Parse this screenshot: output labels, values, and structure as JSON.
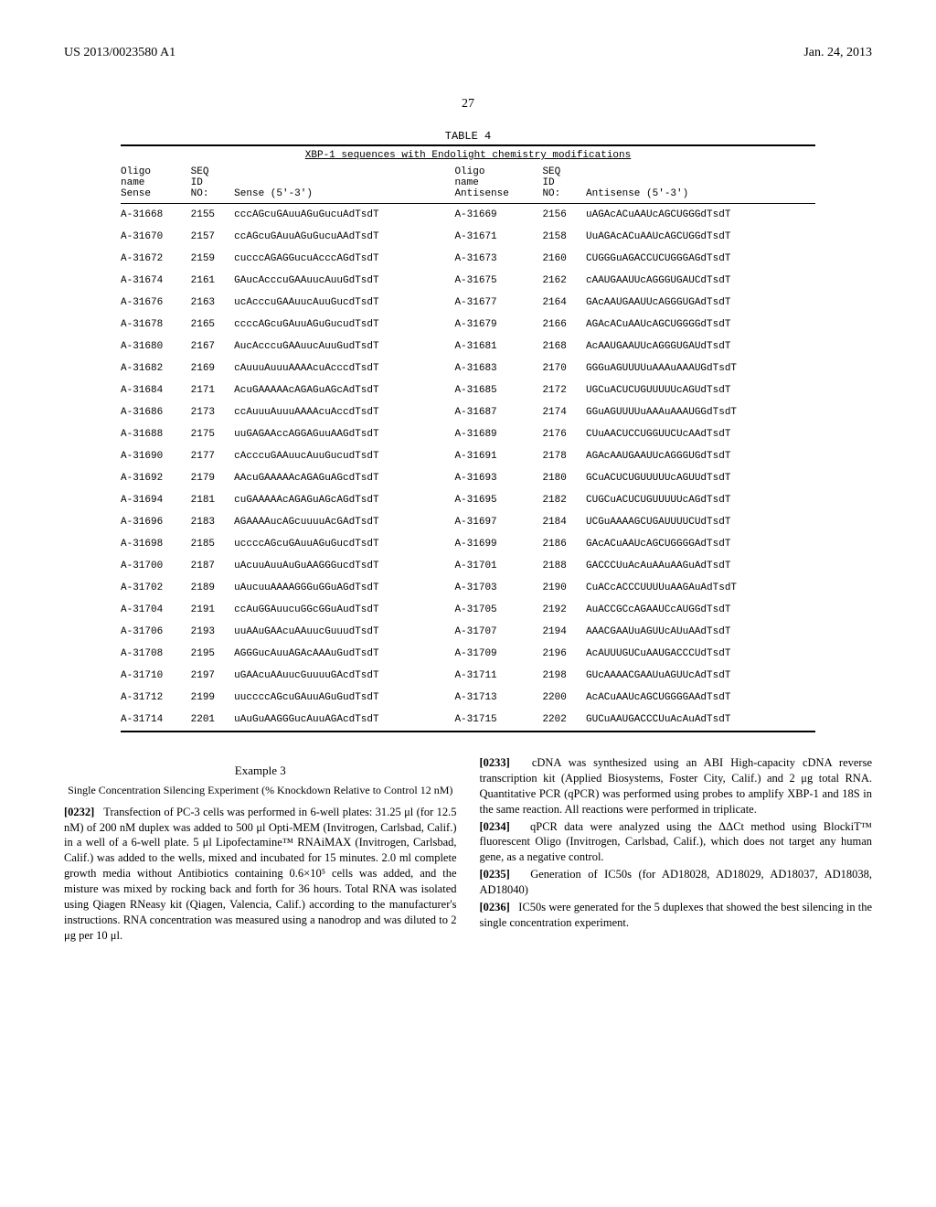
{
  "header": {
    "left": "US 2013/0023580 A1",
    "right": "Jan. 24, 2013"
  },
  "page_number": "27",
  "table": {
    "label": "TABLE 4",
    "caption": "XBP-1 sequences with Endolight chemistry modifications",
    "columns": {
      "c1a": "Oligo",
      "c1b": "name",
      "c1c": "Sense",
      "c2a": "SEQ",
      "c2b": "ID",
      "c2c": "NO:",
      "c3": "Sense (5'-3')",
      "c4a": "Oligo",
      "c4b": "name",
      "c4c": "Antisense",
      "c5a": "SEQ",
      "c5b": "ID",
      "c5c": "NO:",
      "c6": "Antisense (5'-3')"
    },
    "rows": [
      {
        "s": "A-31668",
        "sid": "2155",
        "sseq": "cccAGcuGAuuAGuGucuAdTsdT",
        "a": "A-31669",
        "aid": "2156",
        "aseq": "uAGAcACuAAUcAGCUGGGdTsdT"
      },
      {
        "s": "A-31670",
        "sid": "2157",
        "sseq": "ccAGcuGAuuAGuGucuAAdTsdT",
        "a": "A-31671",
        "aid": "2158",
        "aseq": "UuAGAcACuAAUcAGCUGGdTsdT"
      },
      {
        "s": "A-31672",
        "sid": "2159",
        "sseq": "cucccAGAGGucuAcccAGdTsdT",
        "a": "A-31673",
        "aid": "2160",
        "aseq": "CUGGGuAGACCUCUGGGAGdTsdT"
      },
      {
        "s": "A-31674",
        "sid": "2161",
        "sseq": "GAucAcccuGAAuucAuuGdTsdT",
        "a": "A-31675",
        "aid": "2162",
        "aseq": "cAAUGAAUUcAGGGUGAUCdTsdT"
      },
      {
        "s": "A-31676",
        "sid": "2163",
        "sseq": "ucAcccuGAAuucAuuGucdTsdT",
        "a": "A-31677",
        "aid": "2164",
        "aseq": "GAcAAUGAAUUcAGGGUGAdTsdT"
      },
      {
        "s": "A-31678",
        "sid": "2165",
        "sseq": "ccccAGcuGAuuAGuGucudTsdT",
        "a": "A-31679",
        "aid": "2166",
        "aseq": "AGAcACuAAUcAGCUGGGGdTsdT"
      },
      {
        "s": "A-31680",
        "sid": "2167",
        "sseq": "AucAcccuGAAuucAuuGudTsdT",
        "a": "A-31681",
        "aid": "2168",
        "aseq": "AcAAUGAAUUcAGGGUGAUdTsdT"
      },
      {
        "s": "A-31682",
        "sid": "2169",
        "sseq": "cAuuuAuuuAAAAcuAcccdTsdT",
        "a": "A-31683",
        "aid": "2170",
        "aseq": "GGGuAGUUUUuAAAuAAAUGdTsdT"
      },
      {
        "s": "A-31684",
        "sid": "2171",
        "sseq": "AcuGAAAAAcAGAGuAGcAdTsdT",
        "a": "A-31685",
        "aid": "2172",
        "aseq": "UGCuACUCUGUUUUUcAGUdTsdT"
      },
      {
        "s": "A-31686",
        "sid": "2173",
        "sseq": "ccAuuuAuuuAAAAcuAccdTsdT",
        "a": "A-31687",
        "aid": "2174",
        "aseq": "GGuAGUUUUuAAAuAAAUGGdTsdT"
      },
      {
        "s": "A-31688",
        "sid": "2175",
        "sseq": "uuGAGAAccAGGAGuuAAGdTsdT",
        "a": "A-31689",
        "aid": "2176",
        "aseq": "CUuAACUCCUGGUUCUcAAdTsdT"
      },
      {
        "s": "A-31690",
        "sid": "2177",
        "sseq": "cAcccuGAAuucAuuGucudTsdT",
        "a": "A-31691",
        "aid": "2178",
        "aseq": "AGAcAAUGAAUUcAGGGUGdTsdT"
      },
      {
        "s": "A-31692",
        "sid": "2179",
        "sseq": "AAcuGAAAAAcAGAGuAGcdTsdT",
        "a": "A-31693",
        "aid": "2180",
        "aseq": "GCuACUCUGUUUUUcAGUUdTsdT"
      },
      {
        "s": "A-31694",
        "sid": "2181",
        "sseq": "cuGAAAAAcAGAGuAGcAGdTsdT",
        "a": "A-31695",
        "aid": "2182",
        "aseq": "CUGCuACUCUGUUUUUcAGdTsdT"
      },
      {
        "s": "A-31696",
        "sid": "2183",
        "sseq": "AGAAAAucAGcuuuuAcGAdTsdT",
        "a": "A-31697",
        "aid": "2184",
        "aseq": "UCGuAAAAGCUGAUUUUCUdTsdT"
      },
      {
        "s": "A-31698",
        "sid": "2185",
        "sseq": "uccccAGcuGAuuAGuGucdTsdT",
        "a": "A-31699",
        "aid": "2186",
        "aseq": "GAcACuAAUcAGCUGGGGAdTsdT"
      },
      {
        "s": "A-31700",
        "sid": "2187",
        "sseq": "uAcuuAuuAuGuAAGGGucdTsdT",
        "a": "A-31701",
        "aid": "2188",
        "aseq": "GACCCUuAcAuAAuAAGuAdTsdT"
      },
      {
        "s": "A-31702",
        "sid": "2189",
        "sseq": "uAucuuAAAAGGGuGGuAGdTsdT",
        "a": "A-31703",
        "aid": "2190",
        "aseq": "CuACcACCCUUUUuAAGAuAdTsdT"
      },
      {
        "s": "A-31704",
        "sid": "2191",
        "sseq": "ccAuGGAuucuGGcGGuAudTsdT",
        "a": "A-31705",
        "aid": "2192",
        "aseq": "AuACCGCcAGAAUCcAUGGdTsdT"
      },
      {
        "s": "A-31706",
        "sid": "2193",
        "sseq": "uuAAuGAAcuAAuucGuuudTsdT",
        "a": "A-31707",
        "aid": "2194",
        "aseq": "AAACGAAUuAGUUcAUuAAdTsdT"
      },
      {
        "s": "A-31708",
        "sid": "2195",
        "sseq": "AGGGucAuuAGAcAAAuGudTsdT",
        "a": "A-31709",
        "aid": "2196",
        "aseq": "AcAUUUGUCuAAUGACCCUdTsdT"
      },
      {
        "s": "A-31710",
        "sid": "2197",
        "sseq": "uGAAcuAAuucGuuuuGAcdTsdT",
        "a": "A-31711",
        "aid": "2198",
        "aseq": "GUcAAAACGAAUuAGUUcAdTsdT"
      },
      {
        "s": "A-31712",
        "sid": "2199",
        "sseq": "uuccccAGcuGAuuAGuGudTsdT",
        "a": "A-31713",
        "aid": "2200",
        "aseq": "AcACuAAUcAGCUGGGGAAdTsdT"
      },
      {
        "s": "A-31714",
        "sid": "2201",
        "sseq": "uAuGuAAGGGucAuuAGAcdTsdT",
        "a": "A-31715",
        "aid": "2202",
        "aseq": "GUCuAAUGACCCUuAcAuAdTsdT"
      }
    ]
  },
  "body": {
    "example_title": "Example 3",
    "example_sub": "Single Concentration Silencing Experiment (% Knockdown Relative to Control 12 nM)",
    "p0232_num": "[0232]",
    "p0232": "Transfection of PC-3 cells was performed in 6-well plates: 31.25 μl (for 12.5 nM) of 200 nM duplex was added to 500 μl Opti-MEM (Invitrogen, Carlsbad, Calif.) in a well of a 6-well plate. 5 μl Lipofectamine™ RNAiMAX (Invitrogen, Carlsbad, Calif.) was added to the wells, mixed and incubated for 15 minutes. 2.0 ml complete growth media without Antibiotics containing 0.6×10⁵ cells was added, and the misture was mixed by rocking back and forth for 36 hours. Total RNA was isolated using Qiagen RNeasy kit (Qiagen, Valencia, Calif.) according to the manufacturer's instructions. RNA concentration was measured using a nanodrop and was diluted to 2 μg per 10 μl.",
    "p0233_num": "[0233]",
    "p0233": "cDNA was synthesized using an ABI High-capacity cDNA reverse transcription kit (Applied Biosystems, Foster City, Calif.) and 2 μg total RNA. Quantitative PCR (qPCR) was performed using probes to amplify XBP-1 and 18S in the same reaction. All reactions were performed in triplicate.",
    "p0234_num": "[0234]",
    "p0234": "qPCR data were analyzed using the ΔΔCt method using BlockiT™ fluorescent Oligo (Invitrogen, Carlsbad, Calif.), which does not target any human gene, as a negative control.",
    "p0235_num": "[0235]",
    "p0235": "Generation of IC50s (for AD18028, AD18029, AD18037, AD18038, AD18040)",
    "p0236_num": "[0236]",
    "p0236": "IC50s were generated for the 5 duplexes that showed the best silencing in the single concentration experiment."
  }
}
